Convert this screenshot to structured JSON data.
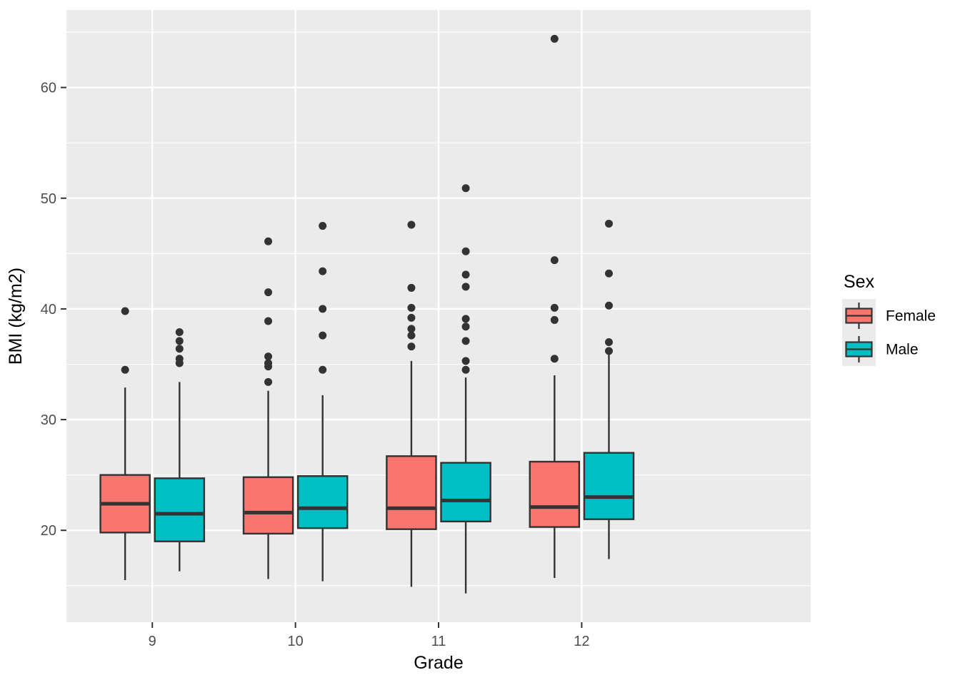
{
  "chart_data": {
    "type": "boxplot",
    "title": "",
    "xlabel": "Grade",
    "ylabel": "BMI (kg/m2)",
    "categories": [
      "9",
      "10",
      "11",
      "12"
    ],
    "x_tick_labels": [
      "9",
      "10",
      "11",
      "12"
    ],
    "y_major_ticks": [
      20,
      30,
      40,
      50,
      60
    ],
    "y_minor_ticks": [
      15,
      25,
      35,
      45,
      55,
      65
    ],
    "ylim": [
      11.7,
      67.0
    ],
    "grid": true,
    "legend": {
      "title": "Sex",
      "position": "right",
      "entries": [
        {
          "label": "Female",
          "color": "#F8766D"
        },
        {
          "label": "Male",
          "color": "#00BFC4"
        }
      ]
    },
    "series": [
      {
        "name": "Female",
        "color": "#F8766D",
        "boxes": [
          {
            "category": "9",
            "whislo": 15.5,
            "q1": 19.8,
            "med": 22.4,
            "q3": 25.0,
            "whishi": 32.9,
            "outliers": [
              34.5,
              39.8
            ]
          },
          {
            "category": "10",
            "whislo": 15.6,
            "q1": 19.7,
            "med": 21.6,
            "q3": 24.8,
            "whishi": 32.6,
            "outliers": [
              33.4,
              34.8,
              35.1,
              35.7,
              38.9,
              41.5,
              46.1
            ]
          },
          {
            "category": "11",
            "whislo": 14.9,
            "q1": 20.1,
            "med": 22.0,
            "q3": 26.7,
            "whishi": 35.3,
            "outliers": [
              36.6,
              37.6,
              38.2,
              39.2,
              40.1,
              41.9,
              47.6
            ]
          },
          {
            "category": "12",
            "whislo": 15.7,
            "q1": 20.3,
            "med": 22.1,
            "q3": 26.2,
            "whishi": 34.0,
            "outliers": [
              35.5,
              39.0,
              40.1,
              44.4,
              64.4
            ]
          }
        ]
      },
      {
        "name": "Male",
        "color": "#00BFC4",
        "boxes": [
          {
            "category": "9",
            "whislo": 16.3,
            "q1": 19.0,
            "med": 21.5,
            "q3": 24.7,
            "whishi": 33.4,
            "outliers": [
              35.1,
              35.5,
              36.4,
              37.1,
              37.9
            ]
          },
          {
            "category": "10",
            "whislo": 15.4,
            "q1": 20.2,
            "med": 22.0,
            "q3": 24.9,
            "whishi": 32.2,
            "outliers": [
              34.5,
              37.6,
              40.0,
              43.4,
              47.5
            ]
          },
          {
            "category": "11",
            "whislo": 14.3,
            "q1": 20.8,
            "med": 22.7,
            "q3": 26.1,
            "whishi": 33.8,
            "outliers": [
              34.5,
              35.3,
              37.1,
              38.4,
              39.1,
              42.0,
              43.1,
              45.2,
              50.9
            ]
          },
          {
            "category": "12",
            "whislo": 17.4,
            "q1": 21.0,
            "med": 23.0,
            "q3": 27.0,
            "whishi": 35.9,
            "outliers": [
              36.2,
              37.0,
              40.3,
              43.2,
              47.7
            ]
          }
        ]
      }
    ],
    "style": {
      "panel_background": "#EBEBEB",
      "grid_color": "#FFFFFF",
      "box_outline": "#333333",
      "outlier_color": "#333333",
      "tick_color": "#333333",
      "tick_label_color": "#4D4D4D",
      "axis_title_color": "#000000",
      "legend_key_background": "#EBEBEB"
    }
  }
}
